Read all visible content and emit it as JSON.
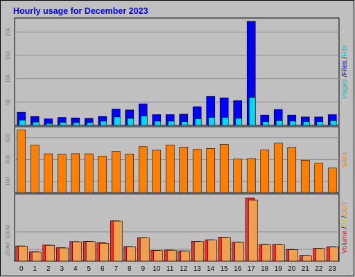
{
  "colors": {
    "background": "#c0c0c0",
    "page_bg": "#ffffff",
    "title": "#0000ff",
    "grid": "#8c8c8c",
    "axis_text": "#000000",
    "ytick_text": "#808080",
    "hits": "#00e0f0",
    "files": "#00d8ff",
    "pages": "#0000ff",
    "sites": "#ff8000",
    "volume": "#ff0000",
    "volume_fill": "#ff2a2a",
    "in_out": "#f0a050",
    "label_pages": "#00c8c8",
    "label_files": "#0000ff",
    "label_hits": "#00c8c8",
    "label_sites": "#ff8000",
    "label_volume": "#ff0000",
    "label_in": "#c8c800",
    "label_out": "#ff8000"
  },
  "chart_data": {
    "type": "bar",
    "title": "Hourly usage for December 2023",
    "categories": [
      "0",
      "1",
      "2",
      "3",
      "4",
      "5",
      "6",
      "7",
      "8",
      "9",
      "10",
      "11",
      "12",
      "13",
      "14",
      "15",
      "16",
      "17",
      "18",
      "19",
      "20",
      "21",
      "22",
      "23"
    ],
    "panels": [
      {
        "name": "top",
        "ylim": [
          0,
          23000
        ],
        "yticks": [
          {
            "value": 5000,
            "label": "5k"
          },
          {
            "value": 10000,
            "label": "10k"
          },
          {
            "value": 15000,
            "label": "15k"
          },
          {
            "value": 20000,
            "label": "20k"
          }
        ],
        "series": [
          {
            "name": "Pages",
            "values": [
              1100,
              700,
              400,
              650,
              600,
              600,
              900,
              1800,
              1500,
              2000,
              900,
              900,
              800,
              1400,
              1700,
              1700,
              1500,
              6000,
              800,
              1000,
              900,
              800,
              800,
              1000
            ]
          },
          {
            "name": "Files",
            "values": [
              2800,
              1900,
              1400,
              1700,
              1600,
              1500,
              1900,
              3500,
              3300,
              4600,
              2300,
              2300,
              2400,
              4000,
              6200,
              5900,
              5300,
              22300,
              2200,
              3400,
              2200,
              1800,
              1800,
              2300
            ]
          }
        ],
        "right_label": [
          {
            "text": "Pages",
            "color_key": "label_pages"
          },
          {
            "text": " /",
            "color_key": "axis_text"
          },
          {
            "text": "Files",
            "color_key": "label_files"
          },
          {
            "text": " /",
            "color_key": "axis_text"
          },
          {
            "text": "Hits",
            "color_key": "label_hits"
          }
        ]
      },
      {
        "name": "middle",
        "ylim": [
          0,
          600
        ],
        "yticks": [
          {
            "value": 100,
            "label": "100"
          },
          {
            "value": 300,
            "label": "300"
          },
          {
            "value": 500,
            "label": "500"
          }
        ],
        "series": [
          {
            "name": "Sites",
            "values": [
              570,
              432,
              353,
              350,
              354,
              353,
              331,
              375,
              351,
              418,
              386,
              434,
              414,
              393,
              402,
              439,
              306,
              310,
              389,
              450,
              412,
              295,
              267,
              224
            ]
          }
        ],
        "right_label": [
          {
            "text": "Sites",
            "color_key": "label_sites"
          }
        ]
      },
      {
        "name": "bottom",
        "ylim": [
          0,
          1150
        ],
        "yticks": [
          {
            "value": 200,
            "label": "200M"
          },
          {
            "value": 500,
            "label": "500M"
          }
        ],
        "series": [
          {
            "name": "Volume",
            "values": [
              260,
              160,
              275,
              230,
              335,
              340,
              315,
              690,
              250,
              400,
              185,
              190,
              175,
              340,
              365,
              410,
              325,
              1180,
              285,
              285,
              200,
              100,
              220,
              245
            ]
          },
          {
            "name": "IN/OUT",
            "values": [
              255,
              155,
              270,
              225,
              330,
              335,
              305,
              685,
              245,
              395,
              180,
              185,
              170,
              335,
              360,
              405,
              320,
              1140,
              280,
              280,
              195,
              95,
              215,
              240
            ]
          }
        ],
        "right_label": [
          {
            "text": "Volume",
            "color_key": "label_volume"
          },
          {
            "text": " /",
            "color_key": "axis_text"
          },
          {
            "text": "IN",
            "color_key": "label_in"
          },
          {
            "text": " /",
            "color_key": "axis_text"
          },
          {
            "text": "OUT",
            "color_key": "label_out"
          }
        ]
      }
    ]
  }
}
